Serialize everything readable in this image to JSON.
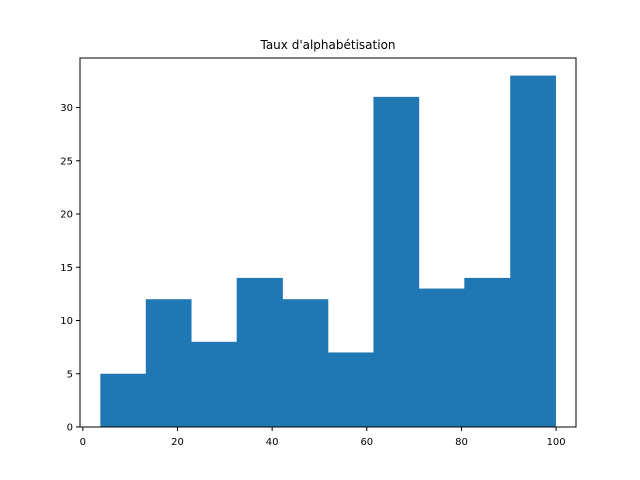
{
  "chart_data": {
    "type": "bar",
    "subtype": "histogram",
    "title": "Taux d'alphabétisation",
    "xlabel": "",
    "ylabel": "",
    "bin_edges": [
      3.7,
      13.3,
      22.9,
      32.5,
      42.2,
      51.8,
      61.4,
      71.0,
      80.6,
      90.3,
      99.9
    ],
    "values": [
      5,
      12,
      8,
      14,
      12,
      7,
      31,
      13,
      14,
      33
    ],
    "xlim": [
      -0.6,
      104.2
    ],
    "ylim": [
      0,
      34.65
    ],
    "xticks": [
      0,
      20,
      40,
      60,
      80,
      100
    ],
    "xtick_labels": [
      "0",
      "20",
      "40",
      "60",
      "80",
      "100"
    ],
    "yticks": [
      0,
      5,
      10,
      15,
      20,
      25,
      30
    ],
    "ytick_labels": [
      "0",
      "5",
      "10",
      "15",
      "20",
      "25",
      "30"
    ],
    "grid": false,
    "legend": "none",
    "bar_color": "#1f77b4"
  }
}
